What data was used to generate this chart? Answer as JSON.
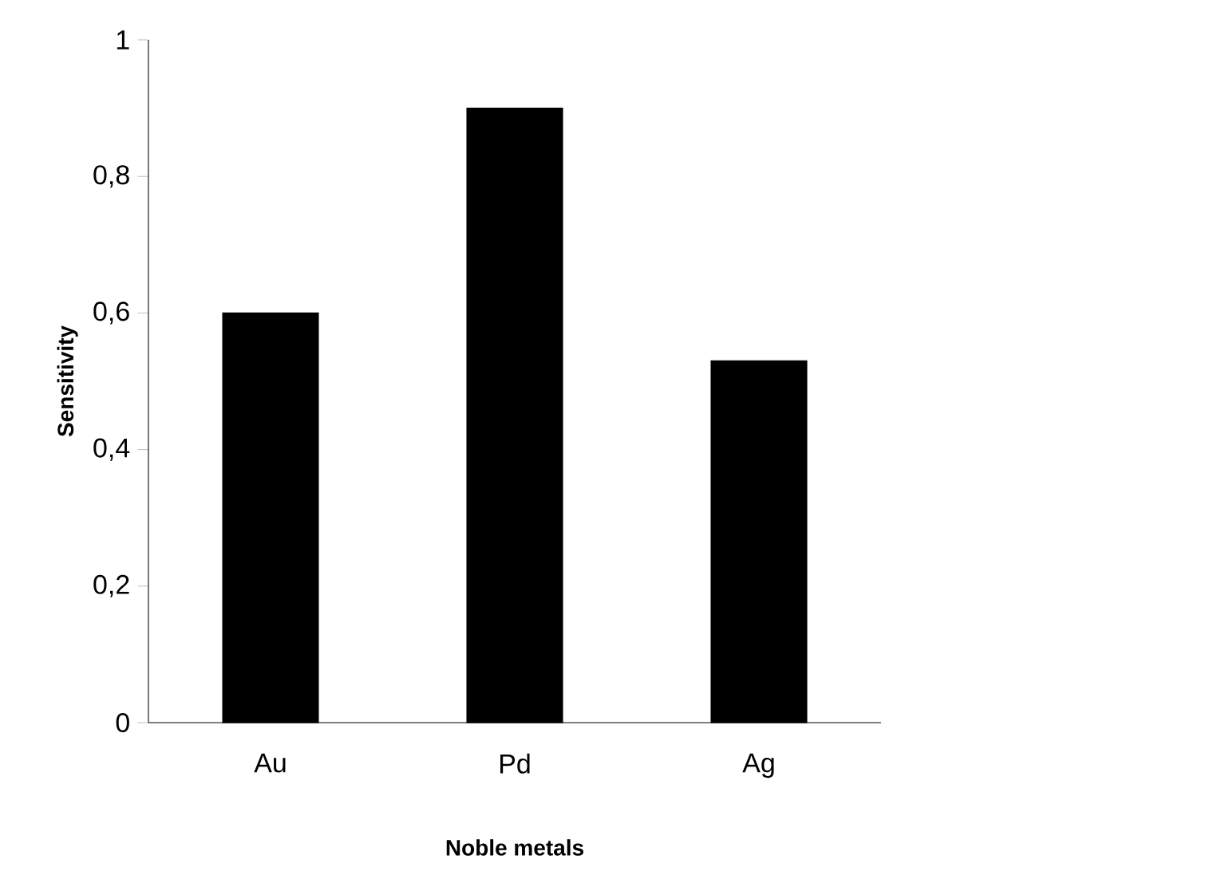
{
  "chart_data": {
    "type": "bar",
    "xlabel": "Noble metals",
    "ylabel": "Sensitivity",
    "categories": [
      "Au",
      "Pd",
      "Ag"
    ],
    "values": [
      0.6,
      0.9,
      0.53
    ],
    "color": "#000000",
    "ylim": [
      0,
      1
    ],
    "yticks": [
      0,
      {
        "value": 0.2,
        "label": "0,2"
      },
      {
        "value": 0.4,
        "label": "0,4"
      },
      {
        "value": 0.6,
        "label": "0,6"
      },
      {
        "value": 0.8,
        "label": "0,8"
      },
      1
    ]
  }
}
